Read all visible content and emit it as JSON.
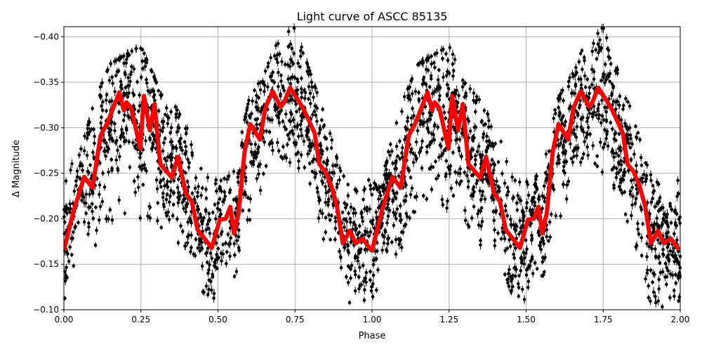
{
  "chart_data": {
    "type": "scatter",
    "title": "Light curve of ASCC 85135",
    "xlabel": "Phase",
    "ylabel": "Δ Magnitude",
    "xlim": [
      0,
      2
    ],
    "ylim": [
      -0.1,
      -0.411
    ],
    "y_inverted": true,
    "grid": true,
    "x_ticks": [
      "0.00",
      "0.25",
      "0.50",
      "0.75",
      "1.00",
      "1.25",
      "1.50",
      "1.75",
      "2.00"
    ],
    "x_tick_values": [
      0,
      0.25,
      0.5,
      0.75,
      1.0,
      1.25,
      1.5,
      1.75,
      2.0
    ],
    "y_ticks": [
      "−0.10",
      "−0.15",
      "−0.20",
      "−0.25",
      "−0.30",
      "−0.35",
      "−0.40"
    ],
    "y_tick_values": [
      -0.1,
      -0.15,
      -0.2,
      -0.25,
      -0.3,
      -0.35,
      -0.4
    ],
    "colors": {
      "observations": "#000000",
      "model": "#ff0000",
      "grid": "#b0b0b0"
    },
    "series": [
      {
        "role": "model",
        "style": "line",
        "repeat_period": 1,
        "points": [
          [
            0.0,
            -0.165
          ],
          [
            0.032,
            -0.209
          ],
          [
            0.066,
            -0.246
          ],
          [
            0.093,
            -0.234
          ],
          [
            0.119,
            -0.291
          ],
          [
            0.142,
            -0.306
          ],
          [
            0.18,
            -0.339
          ],
          [
            0.195,
            -0.319
          ],
          [
            0.203,
            -0.328
          ],
          [
            0.218,
            -0.322
          ],
          [
            0.248,
            -0.277
          ],
          [
            0.26,
            -0.335
          ],
          [
            0.279,
            -0.297
          ],
          [
            0.294,
            -0.326
          ],
          [
            0.313,
            -0.26
          ],
          [
            0.351,
            -0.245
          ],
          [
            0.37,
            -0.268
          ],
          [
            0.396,
            -0.228
          ],
          [
            0.415,
            -0.219
          ],
          [
            0.434,
            -0.188
          ],
          [
            0.48,
            -0.168
          ],
          [
            0.506,
            -0.199
          ],
          [
            0.525,
            -0.2
          ],
          [
            0.54,
            -0.213
          ],
          [
            0.552,
            -0.184
          ],
          [
            0.567,
            -0.206
          ],
          [
            0.586,
            -0.273
          ],
          [
            0.605,
            -0.304
          ],
          [
            0.636,
            -0.287
          ],
          [
            0.654,
            -0.322
          ],
          [
            0.677,
            -0.34
          ],
          [
            0.704,
            -0.323
          ],
          [
            0.715,
            -0.328
          ],
          [
            0.734,
            -0.344
          ],
          [
            0.761,
            -0.33
          ],
          [
            0.78,
            -0.319
          ],
          [
            0.814,
            -0.294
          ],
          [
            0.829,
            -0.26
          ],
          [
            0.848,
            -0.252
          ],
          [
            0.867,
            -0.237
          ],
          [
            0.886,
            -0.214
          ],
          [
            0.905,
            -0.173
          ],
          [
            0.928,
            -0.187
          ],
          [
            0.947,
            -0.173
          ],
          [
            0.97,
            -0.178
          ],
          [
            0.996,
            -0.166
          ]
        ]
      },
      {
        "role": "observations",
        "style": "points-with-errorbars",
        "repeat_period": 1,
        "envelope_faint_bright": [
          [
            0.0,
            -0.11,
            -0.25
          ],
          [
            0.05,
            -0.15,
            -0.27
          ],
          [
            0.1,
            -0.17,
            -0.33
          ],
          [
            0.15,
            -0.19,
            -0.37
          ],
          [
            0.2,
            -0.2,
            -0.38
          ],
          [
            0.25,
            -0.2,
            -0.39
          ],
          [
            0.3,
            -0.2,
            -0.35
          ],
          [
            0.35,
            -0.17,
            -0.33
          ],
          [
            0.4,
            -0.17,
            -0.3
          ],
          [
            0.45,
            -0.12,
            -0.26
          ],
          [
            0.5,
            -0.11,
            -0.24
          ],
          [
            0.55,
            -0.13,
            -0.25
          ],
          [
            0.6,
            -0.19,
            -0.33
          ],
          [
            0.65,
            -0.22,
            -0.36
          ],
          [
            0.7,
            -0.27,
            -0.4
          ],
          [
            0.75,
            -0.25,
            -0.41
          ],
          [
            0.8,
            -0.22,
            -0.36
          ],
          [
            0.85,
            -0.17,
            -0.31
          ],
          [
            0.9,
            -0.11,
            -0.25
          ],
          [
            0.95,
            -0.1,
            -0.23
          ],
          [
            1.0,
            -0.11,
            -0.25
          ]
        ]
      }
    ]
  }
}
